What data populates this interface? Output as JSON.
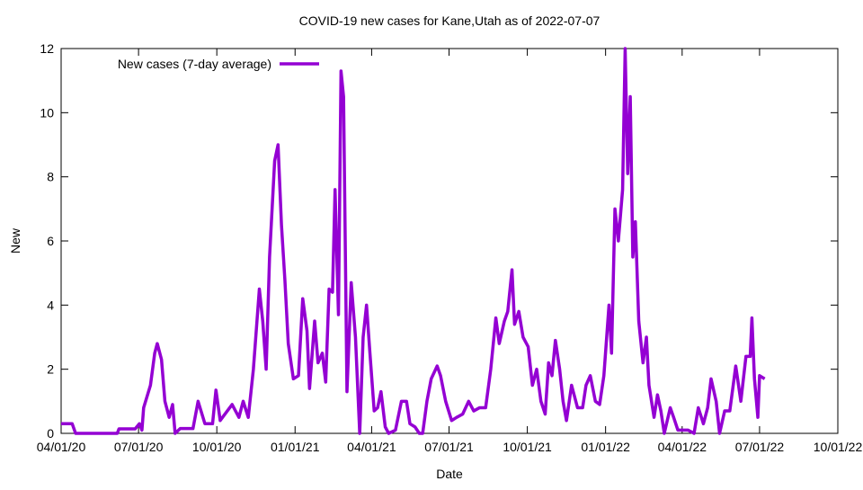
{
  "chart_data": {
    "type": "line",
    "title": "COVID-19 new cases for Kane,Utah as of 2022-07-07",
    "x_label": "Date",
    "y_label": "New",
    "legend": "top-left",
    "xlim": [
      "2020-04-01",
      "2022-10-01"
    ],
    "xticks": [
      {
        "value": "2020-04-01",
        "label": "04/01/20"
      },
      {
        "value": "2020-07-01",
        "label": "07/01/20"
      },
      {
        "value": "2020-10-01",
        "label": "10/01/20"
      },
      {
        "value": "2021-01-01",
        "label": "01/01/21"
      },
      {
        "value": "2021-04-01",
        "label": "04/01/21"
      },
      {
        "value": "2021-07-01",
        "label": "07/01/21"
      },
      {
        "value": "2021-10-01",
        "label": "10/01/21"
      },
      {
        "value": "2022-01-01",
        "label": "01/01/22"
      },
      {
        "value": "2022-04-01",
        "label": "04/01/22"
      },
      {
        "value": "2022-07-01",
        "label": "07/01/22"
      },
      {
        "value": "2022-10-01",
        "label": "10/01/22"
      }
    ],
    "ylim": [
      0,
      12
    ],
    "yticks": [
      0,
      2,
      4,
      6,
      8,
      10,
      12
    ],
    "x": [
      "2020-04-01",
      "2020-04-14",
      "2020-04-18",
      "2020-06-06",
      "2020-06-08",
      "2020-06-27",
      "2020-07-02",
      "2020-07-05",
      "2020-07-07",
      "2020-07-15",
      "2020-07-20",
      "2020-07-23",
      "2020-07-28",
      "2020-08-01",
      "2020-08-06",
      "2020-08-10",
      "2020-08-13",
      "2020-08-19",
      "2020-09-03",
      "2020-09-09",
      "2020-09-17",
      "2020-09-26",
      "2020-09-30",
      "2020-10-05",
      "2020-10-19",
      "2020-10-27",
      "2020-11-01",
      "2020-11-07",
      "2020-11-13",
      "2020-11-20",
      "2020-11-24",
      "2020-11-28",
      "2020-12-02",
      "2020-12-08",
      "2020-12-12",
      "2020-12-16",
      "2020-12-20",
      "2020-12-24",
      "2020-12-30",
      "2021-01-05",
      "2021-01-10",
      "2021-01-15",
      "2021-01-18",
      "2021-01-24",
      "2021-01-28",
      "2021-02-02",
      "2021-02-06",
      "2021-02-10",
      "2021-02-14",
      "2021-02-17",
      "2021-02-21",
      "2021-02-24",
      "2021-02-27",
      "2021-03-03",
      "2021-03-08",
      "2021-03-13",
      "2021-03-18",
      "2021-03-22",
      "2021-03-26",
      "2021-03-30",
      "2021-04-04",
      "2021-04-08",
      "2021-04-12",
      "2021-04-17",
      "2021-04-21",
      "2021-04-29",
      "2021-05-06",
      "2021-05-12",
      "2021-05-16",
      "2021-05-22",
      "2021-05-27",
      "2021-05-31",
      "2021-06-05",
      "2021-06-10",
      "2021-06-17",
      "2021-06-21",
      "2021-06-27",
      "2021-07-04",
      "2021-07-10",
      "2021-07-17",
      "2021-07-24",
      "2021-07-30",
      "2021-08-06",
      "2021-08-13",
      "2021-08-19",
      "2021-08-25",
      "2021-08-29",
      "2021-09-04",
      "2021-09-08",
      "2021-09-13",
      "2021-09-16",
      "2021-09-21",
      "2021-09-26",
      "2021-10-02",
      "2021-10-07",
      "2021-10-12",
      "2021-10-17",
      "2021-10-22",
      "2021-10-26",
      "2021-10-30",
      "2021-11-03",
      "2021-11-08",
      "2021-11-12",
      "2021-11-16",
      "2021-11-22",
      "2021-11-29",
      "2021-12-05",
      "2021-12-09",
      "2021-12-14",
      "2021-12-20",
      "2021-12-25",
      "2021-12-30",
      "2022-01-05",
      "2022-01-08",
      "2022-01-12",
      "2022-01-16",
      "2022-01-21",
      "2022-01-24",
      "2022-01-27",
      "2022-01-30",
      "2022-02-02",
      "2022-02-05",
      "2022-02-09",
      "2022-02-14",
      "2022-02-18",
      "2022-02-21",
      "2022-02-27",
      "2022-03-03",
      "2022-03-07",
      "2022-03-11",
      "2022-03-18",
      "2022-03-22",
      "2022-03-27",
      "2022-04-08",
      "2022-04-15",
      "2022-04-20",
      "2022-04-26",
      "2022-05-01",
      "2022-05-05",
      "2022-05-11",
      "2022-05-15",
      "2022-05-21",
      "2022-05-27",
      "2022-06-03",
      "2022-06-09",
      "2022-06-15",
      "2022-06-20",
      "2022-06-22",
      "2022-06-25",
      "2022-06-29",
      "2022-07-01",
      "2022-07-07"
    ],
    "series": [
      {
        "name": "New cases (7-day average)",
        "color": "#9400d3",
        "values": [
          0.3,
          0.3,
          0,
          0,
          0.14,
          0.14,
          0.3,
          0.1,
          0.8,
          1.5,
          2.5,
          2.8,
          2.3,
          1.0,
          0.5,
          0.9,
          0,
          0.15,
          0.15,
          1.0,
          0.3,
          0.3,
          1.35,
          0.4,
          0.9,
          0.5,
          1.0,
          0.5,
          2.0,
          4.5,
          3.5,
          2.0,
          5.5,
          8.5,
          9.0,
          6.5,
          4.8,
          2.8,
          1.7,
          1.8,
          4.2,
          3.2,
          1.4,
          3.5,
          2.2,
          2.5,
          1.6,
          4.5,
          4.4,
          7.6,
          3.7,
          11.3,
          10.5,
          1.3,
          4.7,
          3.0,
          0,
          3.0,
          4.0,
          2.5,
          0.7,
          0.8,
          1.3,
          0.2,
          0,
          0.1,
          1.0,
          1.0,
          0.3,
          0.2,
          0,
          0,
          1.0,
          1.7,
          2.1,
          1.8,
          1.0,
          0.4,
          0.5,
          0.6,
          1.0,
          0.7,
          0.8,
          0.8,
          2.0,
          3.6,
          2.8,
          3.5,
          3.8,
          5.1,
          3.4,
          3.8,
          3.0,
          2.7,
          1.5,
          2.0,
          1.0,
          0.6,
          2.2,
          1.8,
          2.9,
          2.0,
          1.0,
          0.4,
          1.5,
          0.8,
          0.8,
          1.5,
          1.8,
          1.0,
          0.9,
          1.8,
          4.0,
          2.5,
          7.0,
          6.0,
          7.6,
          12,
          8.1,
          10.5,
          5.5,
          6.6,
          3.5,
          2.2,
          3.0,
          1.5,
          0.5,
          1.2,
          0.7,
          0,
          0.8,
          0.5,
          0.1,
          0.1,
          0,
          0.8,
          0.3,
          0.8,
          1.7,
          1.0,
          0,
          0.7,
          0.7,
          2.1,
          1.0,
          2.4,
          2.4,
          3.6,
          1.7,
          0.5,
          1.8,
          1.7
        ]
      }
    ]
  }
}
